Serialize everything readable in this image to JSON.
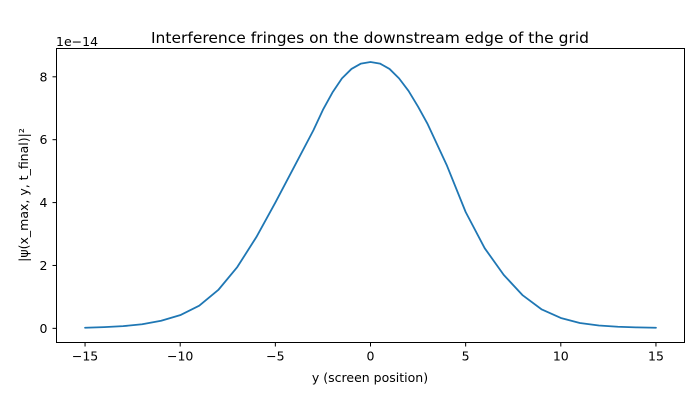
{
  "chart_data": {
    "type": "line",
    "title": "Interference fringes on the downstream edge of the grid",
    "xlabel": "y (screen position)",
    "ylabel": "|ψ(x_max, y, t_final)|²",
    "y_offset_label": "1e−14",
    "xlim": [
      -16.5,
      16.5
    ],
    "ylim": [
      -0.45,
      8.9
    ],
    "x_ticks": [
      -15,
      -10,
      -5,
      0,
      5,
      10,
      15
    ],
    "x_tick_labels": [
      "−15",
      "−10",
      "−5",
      "0",
      "5",
      "10",
      "15"
    ],
    "y_ticks": [
      0,
      2,
      4,
      6,
      8
    ],
    "y_tick_labels": [
      "0",
      "2",
      "4",
      "6",
      "8"
    ],
    "grid": false,
    "legend": "none",
    "series": [
      {
        "color": "#1f77b4",
        "x": [
          -15,
          -14,
          -13,
          -12,
          -11,
          -10,
          -9,
          -8,
          -7,
          -6,
          -5,
          -4,
          -3,
          -2.5,
          -2,
          -1.5,
          -1,
          -0.5,
          0,
          0.5,
          1,
          1.5,
          2,
          2.5,
          3,
          4,
          5,
          6,
          7,
          8,
          9,
          10,
          11,
          12,
          13,
          14,
          15
        ],
        "y": [
          0.02,
          0.04,
          0.07,
          0.13,
          0.24,
          0.42,
          0.72,
          1.22,
          1.95,
          2.9,
          4.0,
          5.15,
          6.3,
          6.95,
          7.5,
          7.95,
          8.25,
          8.42,
          8.47,
          8.42,
          8.25,
          7.95,
          7.55,
          7.05,
          6.5,
          5.2,
          3.7,
          2.55,
          1.7,
          1.05,
          0.6,
          0.33,
          0.17,
          0.09,
          0.05,
          0.03,
          0.02
        ]
      }
    ]
  }
}
